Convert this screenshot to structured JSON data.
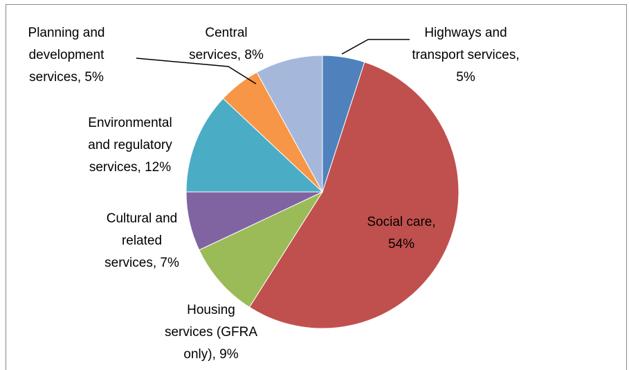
{
  "chart_data": {
    "type": "pie",
    "categories": [
      "Highways and transport services, 5%",
      "Social care, 54%",
      "Housing services (GFRA only), 9%",
      "Cultural and related services, 7%",
      "Environmental and regulatory services, 12%",
      "Planning and development services, 5%",
      "Central services, 8%"
    ],
    "values": [
      5,
      54,
      9,
      7,
      12,
      5,
      8
    ],
    "colors": [
      "#4f81bd",
      "#c0504d",
      "#9bbb59",
      "#8064a2",
      "#4bacc6",
      "#f79646",
      "#a5b8dc"
    ]
  }
}
